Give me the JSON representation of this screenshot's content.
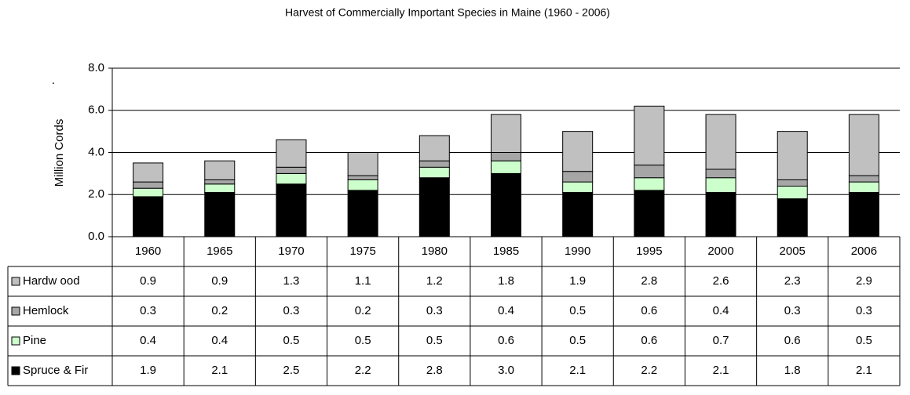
{
  "chart_data": {
    "type": "stacked_bar",
    "title": "Harvest of Commercially Important Species in Maine (1960 - 2006)",
    "y_label": "Million Cords",
    "y_label_note": ".",
    "categories": [
      "1960",
      "1965",
      "1970",
      "1975",
      "1980",
      "1985",
      "1990",
      "1995",
      "2000",
      "2005",
      "2006"
    ],
    "series": [
      {
        "name": "Hardw ood",
        "color": "#c0c0c0",
        "values": [
          0.9,
          0.9,
          1.3,
          1.1,
          1.2,
          1.8,
          1.9,
          2.8,
          2.6,
          2.3,
          2.9
        ],
        "value_labels": [
          "0.9",
          "0.9",
          "1.3",
          "1.1",
          "1.2",
          "1.8",
          "1.9",
          "2.8",
          "2.6",
          "2.3",
          "2.9"
        ]
      },
      {
        "name": "Hemlock",
        "color": "#a6a6a6",
        "values": [
          0.3,
          0.2,
          0.3,
          0.2,
          0.3,
          0.4,
          0.5,
          0.6,
          0.4,
          0.3,
          0.3
        ],
        "value_labels": [
          "0.3",
          "0.2",
          "0.3",
          "0.2",
          "0.3",
          "0.4",
          "0.5",
          "0.6",
          "0.4",
          "0.3",
          "0.3"
        ]
      },
      {
        "name": "Pine",
        "color": "#ccffcc",
        "values": [
          0.4,
          0.4,
          0.5,
          0.5,
          0.5,
          0.6,
          0.5,
          0.6,
          0.7,
          0.6,
          0.5
        ],
        "value_labels": [
          "0.4",
          "0.4",
          "0.5",
          "0.5",
          "0.5",
          "0.6",
          "0.5",
          "0.6",
          "0.7",
          "0.6",
          "0.5"
        ]
      },
      {
        "name": "Spruce & Fir",
        "color": "#000000",
        "values": [
          1.9,
          2.1,
          2.5,
          2.2,
          2.8,
          3.0,
          2.1,
          2.2,
          2.1,
          1.8,
          2.1
        ],
        "value_labels": [
          "1.9",
          "2.1",
          "2.5",
          "2.2",
          "2.8",
          "3.0",
          "2.1",
          "2.2",
          "2.1",
          "1.8",
          "2.1"
        ]
      }
    ],
    "ylim": [
      0,
      8
    ],
    "yticks": [
      {
        "value": 0,
        "label": "0.0"
      },
      {
        "value": 2,
        "label": "2.0"
      },
      {
        "value": 4,
        "label": "4.0"
      },
      {
        "value": 6,
        "label": "6.0"
      },
      {
        "value": 8,
        "label": "8.0"
      }
    ],
    "grid": true
  }
}
